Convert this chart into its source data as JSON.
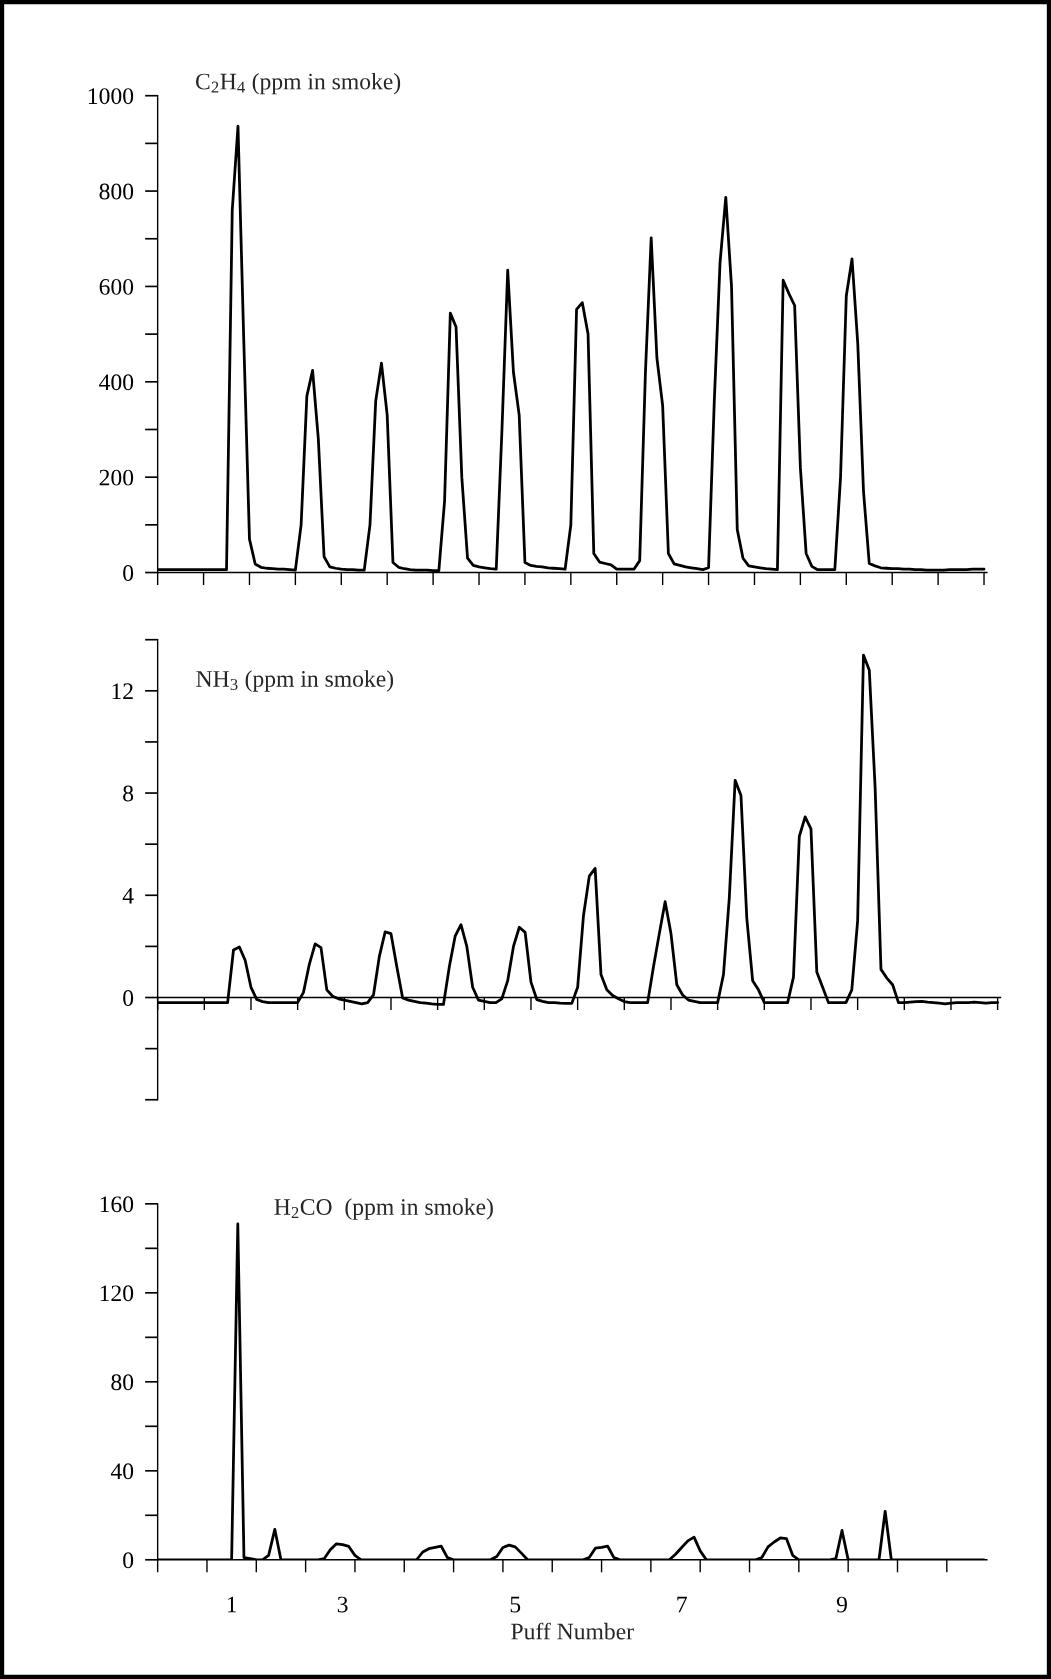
{
  "chart_data": [
    {
      "type": "line",
      "title": "C$_{2}$H$_{4}$ (ppm in smoke)",
      "tick_labels": "y",
      "categories": [
        null,
        null,
        null,
        null,
        null,
        null,
        null,
        null,
        null,
        null,
        null,
        null,
        null,
        null,
        null,
        null,
        null,
        null,
        null,
        null,
        null,
        null,
        null,
        null,
        null,
        null,
        null,
        null,
        null,
        null,
        null,
        null,
        null,
        null,
        null,
        null,
        null,
        null,
        null,
        null,
        null,
        null,
        null,
        null,
        null,
        null,
        null,
        null,
        null,
        null,
        null,
        null,
        null,
        null,
        null,
        null,
        null,
        null,
        null,
        null,
        null,
        null,
        null,
        null,
        null,
        null,
        null,
        null,
        null,
        null,
        null,
        null,
        null,
        null,
        null,
        null,
        null,
        null,
        null,
        null,
        null,
        null,
        null,
        null,
        null,
        null,
        null,
        null,
        null,
        null,
        null,
        null,
        null,
        null,
        null,
        null,
        null,
        null,
        null,
        null,
        null,
        null,
        null,
        null,
        null,
        null,
        null,
        null,
        null,
        null,
        null,
        null,
        null,
        null,
        null,
        null,
        null,
        null,
        null,
        null,
        null,
        null,
        null,
        null,
        null,
        null,
        null,
        null,
        null,
        null,
        null,
        null,
        null,
        null,
        null,
        null,
        null,
        null,
        null,
        null,
        null,
        null,
        null,
        null,
        null
      ],
      "ylim": [
        0,
        1000
      ],
      "yticks": [
        0,
        {
          "value": 100,
          "label": null
        },
        200,
        {
          "value": 300,
          "label": null
        },
        400,
        {
          "value": 500,
          "label": null
        },
        600,
        {
          "value": 700,
          "label": null
        },
        800,
        {
          "value": 900,
          "label": null
        },
        1000
      ],
      "series": [
        {
          "color": "#000000",
          "values": [
            6,
            6,
            6,
            6,
            6,
            6,
            6,
            6,
            6,
            6,
            6,
            6,
            6,
            760,
            936,
            490,
            70,
            18,
            11,
            9,
            8,
            7,
            7,
            6,
            5,
            100,
            370,
            424,
            280,
            33,
            12,
            9,
            7,
            6,
            6,
            5,
            5,
            100,
            360,
            439,
            330,
            21,
            11,
            8,
            6,
            5,
            5,
            5,
            4,
            4,
            150,
            544,
            515,
            200,
            30,
            15,
            12,
            10,
            8,
            7,
            300,
            634,
            420,
            330,
            21,
            15,
            13,
            12,
            10,
            9,
            8,
            7,
            100,
            552,
            566,
            500,
            40,
            22,
            19,
            16,
            7,
            7,
            7,
            7,
            25,
            420,
            702,
            450,
            350,
            40,
            18,
            15,
            12,
            10,
            8,
            6,
            10,
            360,
            650,
            787,
            600,
            90,
            30,
            14,
            12,
            10,
            8,
            7,
            6,
            613,
            585,
            560,
            220,
            40,
            13,
            6,
            6,
            6,
            6,
            200,
            580,
            658,
            480,
            170,
            19,
            14,
            10,
            9,
            8,
            8,
            7,
            7,
            6,
            6,
            5,
            5,
            5,
            5,
            6,
            6,
            6,
            6,
            7,
            7,
            7
          ]
        }
      ]
    },
    {
      "type": "line",
      "title": "NH$_{3}$ (ppm in smoke)",
      "tick_labels": "y",
      "categories": [
        null,
        null,
        null,
        null,
        null,
        null,
        null,
        null,
        null,
        null,
        null,
        null,
        null,
        null,
        null,
        null,
        null,
        null,
        null,
        null,
        null,
        null,
        null,
        null,
        null,
        null,
        null,
        null,
        null,
        null,
        null,
        null,
        null,
        null,
        null,
        null,
        null,
        null,
        null,
        null,
        null,
        null,
        null,
        null,
        null,
        null,
        null,
        null,
        null,
        null,
        null,
        null,
        null,
        null,
        null,
        null,
        null,
        null,
        null,
        null,
        null,
        null,
        null,
        null,
        null,
        null,
        null,
        null,
        null,
        null,
        null,
        null,
        null,
        null,
        null,
        null,
        null,
        null,
        null,
        null,
        null,
        null,
        null,
        null,
        null,
        null,
        null,
        null,
        null,
        null,
        null,
        null,
        null,
        null,
        null,
        null,
        null,
        null,
        null,
        null,
        null,
        null,
        null,
        null,
        null,
        null,
        null,
        null,
        null,
        null,
        null,
        null,
        null,
        null,
        null,
        null,
        null,
        null,
        null,
        null,
        null,
        null,
        null,
        null,
        null,
        null,
        null,
        null,
        null,
        null,
        null,
        null,
        null,
        null,
        null,
        null,
        null,
        null,
        null,
        null,
        null,
        null,
        null,
        null,
        null
      ],
      "ylim": [
        -4,
        14
      ],
      "yticks": [
        {
          "value": -4,
          "label": null
        },
        {
          "value": -2,
          "label": null
        },
        0,
        {
          "value": 2,
          "label": null
        },
        4,
        {
          "value": 6,
          "label": null
        },
        8,
        {
          "value": 10,
          "label": null
        },
        12,
        {
          "value": 14,
          "label": null
        }
      ],
      "series": [
        {
          "color": "#000000",
          "values": [
            -0.2,
            -0.2,
            -0.2,
            -0.2,
            -0.2,
            -0.2,
            -0.2,
            -0.2,
            -0.2,
            -0.2,
            -0.2,
            -0.2,
            -0.2,
            1.86,
            1.98,
            1.46,
            0.4,
            -0.08,
            -0.16,
            -0.2,
            -0.2,
            -0.2,
            -0.2,
            -0.2,
            -0.2,
            0.2,
            1.3,
            2.1,
            1.95,
            0.3,
            0.05,
            -0.05,
            -0.1,
            -0.15,
            -0.2,
            -0.25,
            -0.2,
            0.1,
            1.6,
            2.57,
            2.5,
            1.2,
            -0.02,
            -0.1,
            -0.15,
            -0.2,
            -0.22,
            -0.25,
            -0.27,
            -0.27,
            1.2,
            2.4,
            2.85,
            2.0,
            0.4,
            -0.1,
            -0.15,
            -0.2,
            -0.2,
            -0.05,
            0.65,
            2.0,
            2.75,
            2.55,
            0.6,
            -0.08,
            -0.15,
            -0.2,
            -0.2,
            -0.22,
            -0.23,
            -0.23,
            0.4,
            3.2,
            4.75,
            5.05,
            0.9,
            0.3,
            0.08,
            -0.05,
            -0.16,
            -0.2,
            -0.2,
            -0.2,
            -0.2,
            1.2,
            2.5,
            3.75,
            2.5,
            0.5,
            0.1,
            -0.1,
            -0.15,
            -0.2,
            -0.2,
            -0.2,
            -0.2,
            0.9,
            3.9,
            8.5,
            7.9,
            3.1,
            0.66,
            0.3,
            -0.2,
            -0.2,
            -0.2,
            -0.2,
            -0.2,
            0.8,
            6.3,
            7.07,
            6.6,
            1.0,
            0.4,
            -0.2,
            -0.2,
            -0.2,
            -0.2,
            0.3,
            3.0,
            13.4,
            12.8,
            8.2,
            1.1,
            0.76,
            0.5,
            -0.2,
            -0.2,
            -0.18,
            -0.16,
            -0.15,
            -0.18,
            -0.2,
            -0.22,
            -0.25,
            -0.22,
            -0.2,
            -0.2,
            -0.2,
            -0.18,
            -0.2,
            -0.22,
            -0.2,
            -0.2
          ]
        }
      ]
    },
    {
      "type": "line",
      "title": "H$_{2}$CO  (ppm in smoke)",
      "xlabel": "Puff Number",
      "categories": [
        null,
        null,
        null,
        null,
        null,
        null,
        null,
        null,
        null,
        null,
        null,
        null,
        "1",
        null,
        null,
        null,
        null,
        null,
        null,
        null,
        null,
        null,
        null,
        null,
        null,
        null,
        null,
        null,
        null,
        null,
        "3",
        null,
        null,
        null,
        null,
        null,
        null,
        null,
        null,
        null,
        null,
        null,
        null,
        null,
        null,
        null,
        null,
        null,
        null,
        null,
        null,
        null,
        null,
        null,
        null,
        null,
        null,
        null,
        "5",
        null,
        null,
        null,
        null,
        null,
        null,
        null,
        null,
        null,
        null,
        null,
        null,
        null,
        null,
        null,
        null,
        null,
        null,
        null,
        null,
        null,
        null,
        null,
        null,
        null,
        null,
        "7",
        null,
        null,
        null,
        null,
        null,
        null,
        null,
        null,
        null,
        null,
        null,
        null,
        null,
        null,
        null,
        null,
        null,
        null,
        null,
        null,
        null,
        null,
        null,
        null,
        null,
        "9",
        null,
        null,
        null,
        null,
        null,
        null,
        null,
        null,
        null,
        null,
        null,
        null,
        null,
        null,
        null,
        null,
        null,
        null,
        null,
        null,
        null,
        null,
        null
      ],
      "ylim": [
        0,
        160
      ],
      "yticks": [
        0,
        {
          "value": 20,
          "label": null
        },
        40,
        {
          "value": 60,
          "label": null
        },
        80,
        {
          "value": 100,
          "label": null
        },
        120,
        {
          "value": 140,
          "label": null
        },
        160
      ],
      "series": [
        {
          "color": "#000000",
          "values": [
            0,
            0,
            0,
            0,
            0,
            0,
            0,
            0,
            0,
            0,
            0,
            0,
            0,
            151,
            1,
            0.5,
            0,
            0,
            2,
            13.7,
            0,
            0,
            0,
            0,
            0,
            0,
            0,
            0.5,
            4.5,
            7.2,
            6.8,
            6.0,
            2,
            0,
            0,
            0,
            0,
            0,
            0,
            0,
            0,
            0,
            0,
            3.5,
            5,
            5.6,
            6.1,
            1,
            0,
            0,
            0,
            0,
            0,
            0,
            0,
            1.5,
            5.5,
            6.6,
            5.8,
            3,
            0,
            0,
            0,
            0,
            0,
            0,
            0,
            0,
            0,
            0,
            1,
            5.2,
            5.6,
            6.1,
            1,
            0,
            0,
            0,
            0,
            0,
            0,
            0,
            0,
            0,
            2.5,
            5.5,
            8.5,
            10.2,
            4,
            0,
            0,
            0,
            0,
            0,
            0,
            0,
            0,
            0,
            1,
            5.8,
            8,
            9.8,
            9.5,
            2,
            0,
            0,
            0,
            0,
            0,
            0,
            0.5,
            13.2,
            0,
            0,
            0,
            0,
            0,
            0,
            21.8,
            0,
            0,
            0,
            0,
            0,
            0,
            0,
            0,
            0,
            0,
            0,
            0,
            0,
            0,
            0,
            0
          ]
        }
      ]
    }
  ]
}
